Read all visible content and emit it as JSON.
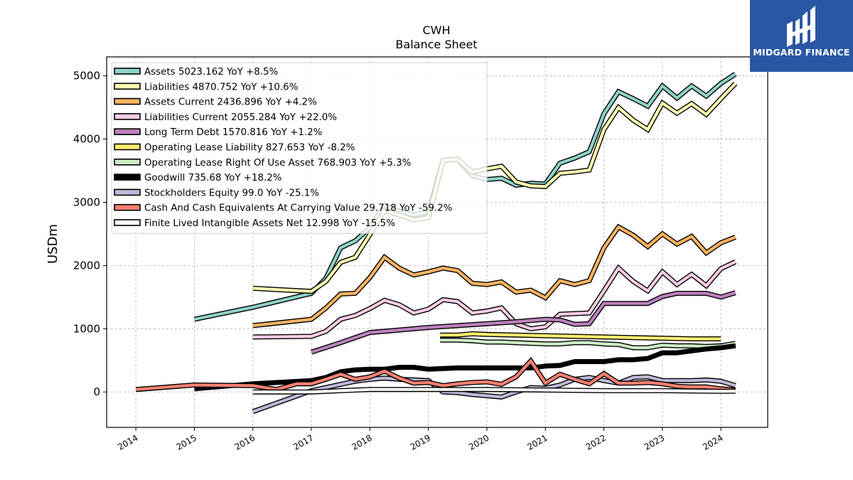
{
  "logo": {
    "text": "MIDGARD FINANCE"
  },
  "chart_data": {
    "type": "line",
    "title": "CWH",
    "subtitle": "Balance  Sheet",
    "xlabel": "",
    "ylabel": "USDm",
    "xlim": [
      2013.5,
      2024.8
    ],
    "ylim": [
      -560,
      5300
    ],
    "xticks": [
      2014,
      2015,
      2016,
      2017,
      2018,
      2019,
      2020,
      2021,
      2022,
      2023,
      2024
    ],
    "yticks": [
      0,
      1000,
      2000,
      3000,
      4000,
      5000
    ],
    "grid": true,
    "legend_position": "top-left",
    "series": [
      {
        "name": "Assets",
        "legend": "Assets  5023.162 YoY +8.5%",
        "color": "#8dd3c7",
        "x": [
          2015.0,
          2016.0,
          2017.0,
          2017.25,
          2017.5,
          2017.75,
          2018.0,
          2018.25,
          2018.5,
          2018.75,
          2019.0,
          2019.25,
          2019.5,
          2019.75,
          2020.0,
          2020.25,
          2020.5,
          2020.75,
          2021.0,
          2021.25,
          2021.5,
          2021.75,
          2022.0,
          2022.25,
          2022.5,
          2022.75,
          2023.0,
          2023.25,
          2023.5,
          2023.75,
          2024.0,
          2024.25
        ],
        "y": [
          1150,
          1340,
          1560,
          1800,
          2280,
          2390,
          2600,
          2950,
          2860,
          2800,
          2850,
          3660,
          3680,
          3420,
          3360,
          3380,
          3270,
          3300,
          3290,
          3620,
          3700,
          3800,
          4400,
          4750,
          4640,
          4520,
          4840,
          4650,
          4840,
          4680,
          4880,
          5030
        ]
      },
      {
        "name": "Liabilities",
        "legend": "Liabilities  4870.752 YoY +10.6%",
        "color": "#ffffb3",
        "x": [
          2016.0,
          2017.0,
          2017.25,
          2017.5,
          2017.75,
          2018.0,
          2018.25,
          2018.5,
          2018.75,
          2019.0,
          2019.25,
          2019.5,
          2019.75,
          2020.0,
          2020.25,
          2020.5,
          2020.75,
          2021.0,
          2021.25,
          2021.5,
          2021.75,
          2022.0,
          2022.25,
          2022.5,
          2022.75,
          2023.0,
          2023.25,
          2023.5,
          2023.75,
          2024.0,
          2024.25
        ],
        "y": [
          1640,
          1590,
          1750,
          2050,
          2130,
          2490,
          2870,
          2800,
          2720,
          2760,
          3660,
          3680,
          3480,
          3530,
          3570,
          3320,
          3260,
          3250,
          3460,
          3480,
          3510,
          4150,
          4500,
          4300,
          4150,
          4570,
          4410,
          4560,
          4390,
          4640,
          4880
        ]
      },
      {
        "name": "Assets Current",
        "legend": "Assets Current  2436.896 YoY +4.2%",
        "color": "#fdb462",
        "x": [
          2016.0,
          2017.0,
          2017.25,
          2017.5,
          2017.75,
          2018.0,
          2018.25,
          2018.5,
          2018.75,
          2019.0,
          2019.25,
          2019.5,
          2019.75,
          2020.0,
          2020.25,
          2020.5,
          2020.75,
          2021.0,
          2021.25,
          2021.5,
          2021.75,
          2022.0,
          2022.25,
          2022.5,
          2022.75,
          2023.0,
          2023.25,
          2023.5,
          2023.75,
          2024.0,
          2024.25
        ],
        "y": [
          1050,
          1150,
          1330,
          1550,
          1560,
          1810,
          2130,
          1960,
          1850,
          1900,
          1960,
          1920,
          1720,
          1700,
          1740,
          1580,
          1610,
          1490,
          1760,
          1700,
          1760,
          2280,
          2610,
          2480,
          2300,
          2500,
          2340,
          2460,
          2200,
          2360,
          2450
        ]
      },
      {
        "name": "Liabilities Current",
        "legend": "Liabilities Current  2055.284 YoY +22.0%",
        "color": "#fccde5",
        "x": [
          2016.0,
          2017.0,
          2017.25,
          2017.5,
          2017.75,
          2018.0,
          2018.25,
          2018.5,
          2018.75,
          2019.0,
          2019.25,
          2019.5,
          2019.75,
          2020.0,
          2020.25,
          2020.5,
          2020.75,
          2021.0,
          2021.25,
          2021.5,
          2021.75,
          2022.0,
          2022.25,
          2022.5,
          2022.75,
          2023.0,
          2023.25,
          2023.5,
          2023.75,
          2024.0,
          2024.25
        ],
        "y": [
          870,
          880,
          960,
          1150,
          1210,
          1320,
          1450,
          1380,
          1250,
          1310,
          1460,
          1430,
          1250,
          1280,
          1330,
          1080,
          1000,
          1030,
          1230,
          1240,
          1250,
          1600,
          1960,
          1750,
          1600,
          1900,
          1700,
          1860,
          1680,
          1950,
          2060
        ]
      },
      {
        "name": "Long Term Debt",
        "legend": "Long Term Debt  1570.816 YoY +1.2%",
        "color": "#bc80bd",
        "x": [
          2017.0,
          2017.5,
          2018.0,
          2018.5,
          2019.0,
          2019.5,
          2020.0,
          2020.5,
          2021.0,
          2021.25,
          2021.5,
          2021.75,
          2022.0,
          2022.25,
          2022.5,
          2022.75,
          2023.0,
          2023.25,
          2023.5,
          2023.75,
          2024.0,
          2024.25
        ],
        "y": [
          630,
          780,
          940,
          980,
          1020,
          1050,
          1080,
          1110,
          1150,
          1140,
          1070,
          1080,
          1400,
          1400,
          1400,
          1400,
          1510,
          1560,
          1560,
          1560,
          1500,
          1570
        ]
      },
      {
        "name": "Operating Lease Liability",
        "legend": "Operating Lease Liability  827.653 YoY -8.2%",
        "color": "#ffed6f",
        "x": [
          2019.2,
          2019.5,
          2019.75,
          2020.0,
          2020.5,
          2021.0,
          2021.5,
          2022.0,
          2022.5,
          2023.0,
          2023.5,
          2024.0
        ],
        "y": [
          900,
          900,
          920,
          910,
          900,
          890,
          880,
          870,
          860,
          850,
          840,
          840
        ]
      },
      {
        "name": "Operating Lease Right Of Use Asset",
        "legend": "Operating Lease Right Of Use Asset  768.903 YoY +5.3%",
        "color": "#ccebc5",
        "x": [
          2019.2,
          2019.5,
          2019.75,
          2020.0,
          2020.25,
          2020.5,
          2020.75,
          2021.0,
          2021.25,
          2021.5,
          2021.75,
          2022.0,
          2022.25,
          2022.5,
          2022.75,
          2023.0,
          2023.25,
          2023.5,
          2023.75,
          2024.0,
          2024.25
        ],
        "y": [
          820,
          820,
          810,
          790,
          790,
          780,
          770,
          760,
          760,
          780,
          780,
          760,
          750,
          700,
          700,
          740,
          730,
          730,
          720,
          730,
          770
        ]
      },
      {
        "name": "Goodwill",
        "legend": "Goodwill  735.68 YoY +18.2%",
        "color": "#000000",
        "x": [
          2015.0,
          2016.0,
          2017.0,
          2017.25,
          2017.5,
          2017.75,
          2018.0,
          2018.25,
          2018.5,
          2018.75,
          2019.0,
          2019.25,
          2019.5,
          2019.75,
          2020.0,
          2020.25,
          2020.5,
          2020.75,
          2021.0,
          2021.25,
          2021.5,
          2021.75,
          2022.0,
          2022.25,
          2022.5,
          2022.75,
          2023.0,
          2023.25,
          2023.5,
          2023.75,
          2024.0,
          2024.25
        ],
        "y": [
          50,
          130,
          180,
          230,
          320,
          350,
          360,
          360,
          390,
          390,
          360,
          370,
          380,
          380,
          380,
          380,
          380,
          380,
          410,
          420,
          480,
          480,
          480,
          510,
          510,
          530,
          620,
          620,
          650,
          680,
          700,
          730
        ]
      },
      {
        "name": "Stockholders Equity",
        "legend": "Stockholders Equity  99.0 YoY -25.1%",
        "color": "#bebada",
        "x": [
          2016.0,
          2017.0,
          2017.5,
          2017.75,
          2018.0,
          2018.25,
          2018.5,
          2018.75,
          2019.0,
          2019.25,
          2019.5,
          2019.75,
          2020.0,
          2020.25,
          2020.5,
          2020.75,
          2021.0,
          2021.25,
          2021.5,
          2021.75,
          2022.0,
          2022.25,
          2022.5,
          2022.75,
          2023.0,
          2023.25,
          2023.5,
          2023.75,
          2024.0,
          2024.25
        ],
        "y": [
          -310,
          20,
          120,
          170,
          200,
          220,
          200,
          190,
          180,
          0,
          -10,
          -40,
          -60,
          -80,
          0,
          70,
          60,
          110,
          200,
          230,
          180,
          140,
          230,
          240,
          180,
          180,
          180,
          190,
          170,
          100
        ]
      },
      {
        "name": "Cash And Cash Equivalents At Carrying Value",
        "legend": "Cash And Cash Equivalents At Carrying Value  29.718 YoY -59.2%",
        "color": "#fb8072",
        "x": [
          2014.0,
          2015.0,
          2016.0,
          2016.4,
          2016.75,
          2017.0,
          2017.25,
          2017.5,
          2017.75,
          2018.0,
          2018.25,
          2018.5,
          2018.75,
          2019.0,
          2019.25,
          2019.5,
          2019.75,
          2020.0,
          2020.25,
          2020.5,
          2020.75,
          2021.0,
          2021.25,
          2021.5,
          2021.75,
          2022.0,
          2022.25,
          2022.5,
          2022.75,
          2023.0,
          2023.25,
          2023.5,
          2023.75,
          2024.0,
          2024.25
        ],
        "y": [
          40,
          110,
          100,
          40,
          130,
          130,
          200,
          280,
          200,
          240,
          330,
          220,
          140,
          150,
          100,
          130,
          150,
          160,
          120,
          240,
          490,
          140,
          280,
          200,
          130,
          290,
          140,
          140,
          150,
          130,
          90,
          80,
          80,
          50,
          30
        ]
      },
      {
        "name": "Finite Lived Intangible Assets Net",
        "legend": "Finite Lived Intangible Assets Net  12.998 YoY -15.5%",
        "color": "#ffffff",
        "x": [
          2016.0,
          2017.0,
          2017.5,
          2018.0,
          2019.0,
          2020.0,
          2021.0,
          2022.0,
          2023.0,
          2024.0,
          2024.25
        ],
        "y": [
          0,
          0,
          20,
          40,
          40,
          40,
          30,
          20,
          20,
          10,
          13
        ]
      }
    ]
  }
}
